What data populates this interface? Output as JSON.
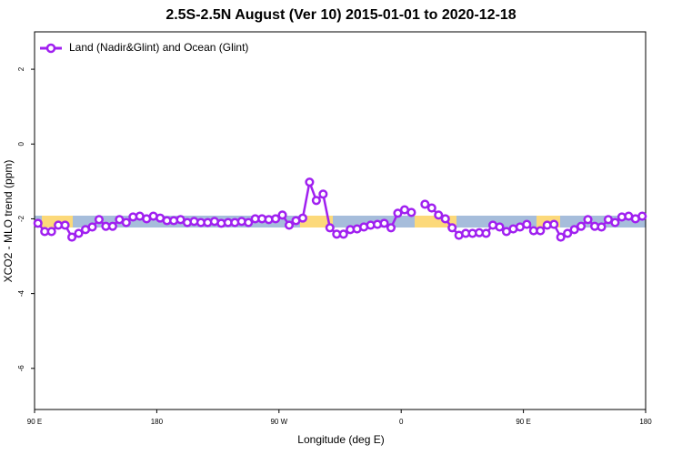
{
  "chart_data": {
    "type": "line",
    "title": "2.5S-2.5N August (Ver 10)   2015-01-01 to 2020-12-18",
    "x_label": "Longitude (deg E)",
    "y_label": "XCO2 - MLO trend (ppm)",
    "xlim": [
      90,
      540
    ],
    "ylim": [
      -7.1,
      3.0
    ],
    "xticks": [
      {
        "value": 90,
        "label": "90 E"
      },
      180,
      {
        "value": 270,
        "label": "90 W"
      },
      {
        "value": 360,
        "label": "0"
      },
      {
        "value": 450,
        "label": "90 E"
      },
      {
        "value": 540,
        "label": "180"
      }
    ],
    "yticks": [
      2,
      0,
      -2,
      -4,
      -6
    ],
    "legend": "top-left",
    "x": [
      92.5,
      97.5,
      102.5,
      107.5,
      112.5,
      117.5,
      122.5,
      127.5,
      132.5,
      137.5,
      142.5,
      147.5,
      152.5,
      157.5,
      162.5,
      167.5,
      172.5,
      177.5,
      182.5,
      187.5,
      192.5,
      197.5,
      202.5,
      207.5,
      212.5,
      217.5,
      222.5,
      227.5,
      232.5,
      237.5,
      242.5,
      247.5,
      252.5,
      257.5,
      262.5,
      267.5,
      272.5,
      277.5,
      282.5,
      287.5,
      292.5,
      297.5,
      302.5,
      307.5,
      312.5,
      317.5,
      322.5,
      327.5,
      332.5,
      337.5,
      342.5,
      347.5,
      352.5,
      357.5,
      362.5,
      367.5,
      372.5,
      377.5,
      382.5,
      387.5,
      392.5,
      397.5,
      402.5,
      407.5,
      412.5,
      417.5,
      422.5,
      427.5,
      432.5,
      437.5,
      442.5,
      447.5,
      452.5,
      457.5,
      462.5,
      467.5,
      472.5,
      477.5,
      482.5,
      487.5,
      492.5,
      497.5,
      502.5,
      507.5,
      512.5,
      517.5,
      522.5,
      527.5,
      532.5,
      537.5
    ],
    "series": [
      {
        "name": "Land (Nadir&Glint) and Ocean (Glint)",
        "color": "#a020f0",
        "values": [
          -2.12,
          -2.34,
          -2.34,
          -2.17,
          -2.17,
          -2.49,
          -2.39,
          -2.29,
          -2.22,
          -2.02,
          -2.2,
          -2.2,
          -2.02,
          -2.1,
          -1.95,
          -1.93,
          -2.0,
          -1.93,
          -1.98,
          -2.05,
          -2.05,
          -2.02,
          -2.1,
          -2.07,
          -2.1,
          -2.1,
          -2.07,
          -2.12,
          -2.1,
          -2.1,
          -2.07,
          -2.1,
          -2.0,
          -2.0,
          -2.02,
          -2.0,
          -1.9,
          -2.17,
          -2.05,
          -1.98,
          -1.02,
          -1.51,
          -1.34,
          -2.24,
          -2.41,
          -2.41,
          -2.29,
          -2.27,
          -2.22,
          -2.17,
          -2.15,
          -2.12,
          -2.24,
          -1.85,
          -1.76,
          -1.83,
          null,
          -1.61,
          -1.71,
          -1.9,
          -2.0,
          -2.24,
          -2.44,
          -2.39,
          -2.39,
          -2.37,
          -2.39,
          -2.17,
          -2.22,
          -2.34,
          -2.27,
          -2.22,
          -2.15,
          -2.32,
          -2.32,
          -2.17,
          -2.15,
          -2.49,
          -2.39,
          -2.29,
          -2.2,
          -2.02,
          -2.2,
          -2.22,
          -2.02,
          -2.1,
          -1.95,
          -1.93,
          -2.0,
          -1.93
        ]
      }
    ]
  }
}
